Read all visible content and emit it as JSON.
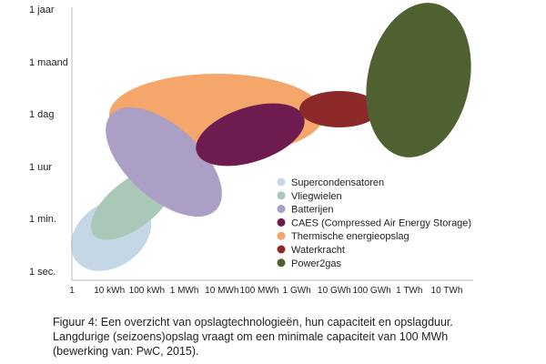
{
  "chart_data": {
    "type": "scatter",
    "title": "",
    "xlabel": "",
    "ylabel": "",
    "x_ticks": [
      "1",
      "10 kWh",
      "100 kWh",
      "1 MWh",
      "10 MWh",
      "100 MWh",
      "1 GWh",
      "10 GWh",
      "100 GWh",
      "1 TWh",
      "10 TWh"
    ],
    "y_ticks": [
      "1 sec.",
      "1 min.",
      "1 uur",
      "1 dag",
      "1 maand",
      "1 jaar"
    ],
    "x_scale": "log",
    "grid": false,
    "legend_position": "lower-right",
    "series": [
      {
        "name": "Supercondensatoren",
        "color": "#c5d6e6",
        "x_range": [
          "1",
          "100 kWh"
        ],
        "y_range": [
          "1 sec.",
          "1 min."
        ]
      },
      {
        "name": "Vliegwielen",
        "color": "#a9c8b8",
        "x_range": [
          "10 kWh",
          "1 MWh"
        ],
        "y_range": [
          "1 min.",
          "1 uur"
        ]
      },
      {
        "name": "Batterijen",
        "color": "#ab9fc6",
        "x_range": [
          "100 kWh",
          "10 MWh"
        ],
        "y_range": [
          "1 min.",
          "1 dag"
        ]
      },
      {
        "name": "CAES (Compressed Air Energy Storage)",
        "color": "#6e1c50",
        "x_range": [
          "10 MWh",
          "1 GWh"
        ],
        "y_range": [
          "1 uur",
          "1 dag"
        ]
      },
      {
        "name": "Thermische energieopslag",
        "color": "#f5a66a",
        "x_range": [
          "100 kWh",
          "1 GWh"
        ],
        "y_range": [
          "1 uur",
          "1 maand"
        ]
      },
      {
        "name": "Waterkracht",
        "color": "#8c2a2a",
        "x_range": [
          "1 GWh",
          "100 GWh"
        ],
        "y_range": [
          "1 dag",
          "1 maand"
        ]
      },
      {
        "name": "Power2gas",
        "color": "#4f6130",
        "x_range": [
          "10 GWh",
          "10 TWh"
        ],
        "y_range": [
          "1 uur",
          "1 jaar"
        ]
      }
    ]
  },
  "caption": {
    "line1": "Figuur 4: Een overzicht van opslagtechnologieën, hun capaciteit en opslagduur.",
    "line2": "Langdurige (seizoens)opslag vraagt om een minimale capaciteit van 100 MWh",
    "line3": "(bewerking van: PwC, 2015)."
  }
}
